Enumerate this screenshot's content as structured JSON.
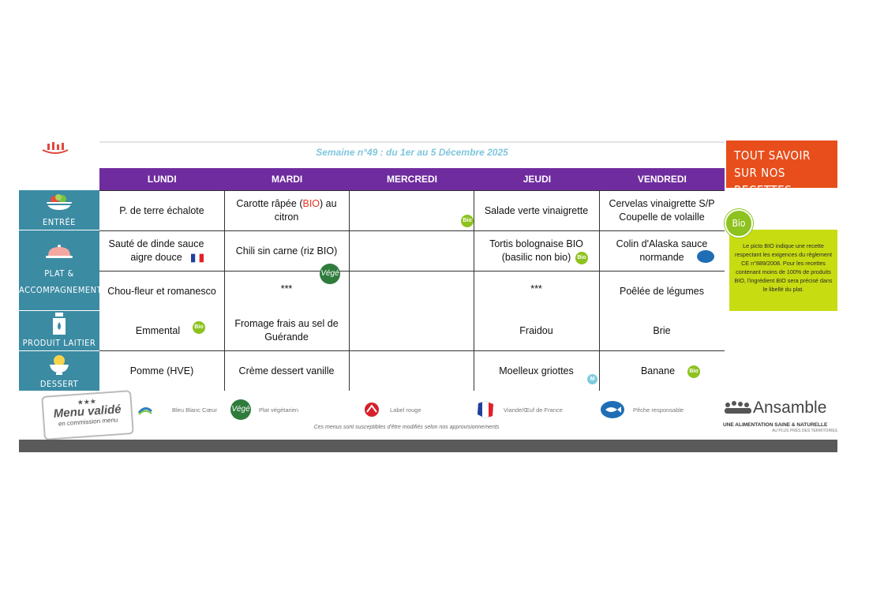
{
  "header": {
    "week_title": "Semaine n°49 : du 1er au 5 Décembre 2025"
  },
  "days": [
    "LUNDI",
    "MARDI",
    "MERCREDI",
    "JEUDI",
    "VENDREDI"
  ],
  "categories": {
    "entree": "ENTRÉE",
    "plat_line1": "PLAT &",
    "plat_line2": "ACCOMPAGNEMENT",
    "laitier": "PRODUIT LAITIER",
    "dessert": "DESSERT"
  },
  "menu": {
    "entree": {
      "lundi": "P. de terre échalote",
      "mardi_pre": "Carotte râpée (",
      "mardi_bio": "BIO",
      "mardi_post": ") au citron",
      "mercredi": "",
      "jeudi": "Salade verte vinaigrette",
      "vendredi": "Cervelas vinaigrette S/P Coupelle de volaille"
    },
    "plat": {
      "lundi": "Sauté de dinde sauce aigre douce",
      "mardi": "Chili sin carne (riz BIO)",
      "mercredi": "",
      "jeudi": "Tortis bolognaise BIO (basilic non bio)",
      "vendredi": "Colin d'Alaska sauce normande"
    },
    "accompagnement": {
      "lundi": "Chou-fleur et romanesco",
      "mardi": "***",
      "mercredi": "",
      "jeudi": "***",
      "vendredi": "Poêlée de légumes"
    },
    "laitier": {
      "lundi": "Emmental",
      "mardi": "Fromage frais au sel de Guérande",
      "mercredi": "",
      "jeudi": "Fraidou",
      "vendredi": "Brie"
    },
    "dessert": {
      "lundi": "Pomme (HVE)",
      "mardi": "Crème dessert vanille",
      "mercredi": "",
      "jeudi": "Moelleux griottes",
      "vendredi": "Banane"
    }
  },
  "badges": {
    "bio": "Bio",
    "vege": "Végé",
    "m": "M"
  },
  "side": {
    "recettes": "TOUT SAVOIR SUR NOS RECETTES",
    "bio_circle": "Bio",
    "bio_note": "Le picto BIO indique une recette respectant les exigences du règlement CE n°889/2008. Pour les recettes contenant moins de 100% de produits BIO, l'ingrédient BIO sera précisé dans le libellé du plat."
  },
  "footer": {
    "stamp_stars": "★★★",
    "stamp_title": "Menu validé",
    "stamp_sub": "en commission menu",
    "legend": {
      "bleu_blanc_coeur": "Bleu Blanc Cœur",
      "vegetarien": "Plat végétarien",
      "label_rouge": "Label rouge",
      "france": "Viande/Œuf de France",
      "peche": "Pêche responsable"
    },
    "disclaimer": "Ces menus sont susceptibles d'être modifiés selon nos approvisionnements",
    "brand_name": "Ansamble",
    "brand_tagline": "UNE ALIMENTATION SAINE & NATURELLE",
    "brand_sub": "AU PLUS PRÈS DES TERRITOIRES"
  },
  "colors": {
    "days_bar": "#6f2c9e",
    "category": "#3b8ba3",
    "bio": "#8dc21f",
    "recettes": "#e84e1b",
    "bio_note": "#c8dc12"
  }
}
